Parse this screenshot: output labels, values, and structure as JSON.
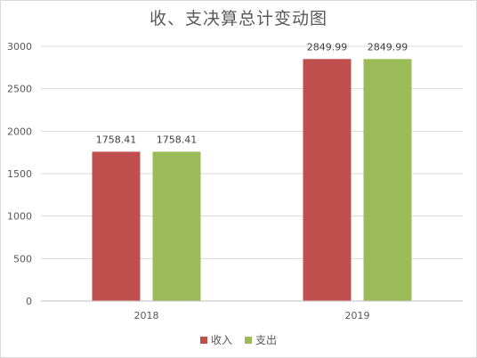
{
  "chart_data": {
    "type": "bar",
    "title": "收、支决算总计变动图",
    "categories": [
      "2018",
      "2019"
    ],
    "series": [
      {
        "name": "收入",
        "values": [
          1758.41,
          2849.99
        ],
        "labels": [
          "1758.41",
          "2849.99"
        ],
        "color": "#c0504d"
      },
      {
        "name": "支出",
        "values": [
          1758.41,
          2849.99
        ],
        "labels": [
          "1758.41",
          "2849.99"
        ],
        "color": "#9bbb59"
      }
    ],
    "ylim": [
      0,
      3000
    ],
    "yticks": [
      0,
      500,
      1000,
      1500,
      2000,
      2500,
      3000
    ],
    "grid": true,
    "gridColor": "#d9d9d9",
    "legend_position": "bottom"
  }
}
